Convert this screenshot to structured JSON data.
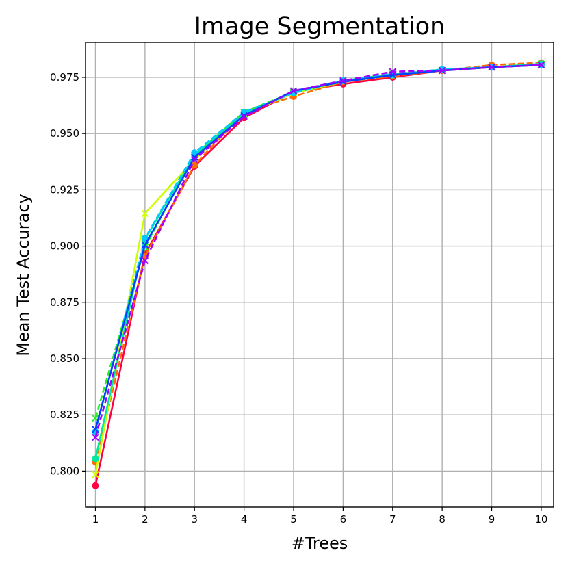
{
  "chart_data": {
    "type": "line",
    "title": "Image Segmentation",
    "xlabel": "#Trees",
    "ylabel": "Mean Test Accuracy",
    "x": [
      1,
      2,
      3,
      4,
      5,
      6,
      7,
      8,
      9,
      10
    ],
    "xlim": [
      0.8,
      10.25
    ],
    "ylim": [
      0.784,
      0.9905
    ],
    "xticks": [
      1,
      2,
      3,
      4,
      5,
      6,
      7,
      8,
      9,
      10
    ],
    "yticks": [
      0.8,
      0.825,
      0.85,
      0.875,
      0.9,
      0.925,
      0.95,
      0.975
    ],
    "ytick_labels": [
      "0.800",
      "0.825",
      "0.850",
      "0.875",
      "0.900",
      "0.925",
      "0.950",
      "0.975"
    ],
    "grid": true,
    "series": [
      {
        "color": "#ff0040",
        "dash": "solid",
        "marker": "circle",
        "values": [
          0.7935,
          0.8965,
          0.9355,
          0.957,
          0.9685,
          0.972,
          0.975,
          0.978,
          0.9795,
          0.9805
        ]
      },
      {
        "color": "#ff6a00",
        "dash": "dashed",
        "marker": "circle",
        "values": [
          0.804,
          0.8955,
          0.936,
          0.9595,
          0.9665,
          0.973,
          0.9755,
          0.978,
          0.9805,
          0.9815
        ]
      },
      {
        "color": "#ccff00",
        "dash": "solid",
        "marker": "x",
        "values": [
          0.7985,
          0.9145,
          0.9385,
          0.9585,
          0.968,
          0.973,
          0.976,
          0.978,
          0.9795,
          0.981
        ]
      },
      {
        "color": "#22ee22",
        "dash": "dashed",
        "marker": "x",
        "values": [
          0.8235,
          0.8995,
          0.9405,
          0.9595,
          0.9685,
          0.9735,
          0.9765,
          0.978,
          0.9795,
          0.981
        ]
      },
      {
        "color": "#00e8a0",
        "dash": "solid",
        "marker": "circle",
        "values": [
          0.8055,
          0.903,
          0.9405,
          0.9585,
          0.9685,
          0.9735,
          0.976,
          0.9785,
          0.9795,
          0.981
        ]
      },
      {
        "color": "#00c8ff",
        "dash": "dashed",
        "marker": "circle",
        "values": [
          0.8175,
          0.9035,
          0.9415,
          0.9595,
          0.968,
          0.9735,
          0.9765,
          0.9785,
          0.9795,
          0.9805
        ]
      },
      {
        "color": "#0040ff",
        "dash": "solid",
        "marker": "x",
        "values": [
          0.8185,
          0.9005,
          0.9395,
          0.958,
          0.969,
          0.973,
          0.976,
          0.978,
          0.9795,
          0.9805
        ]
      },
      {
        "color": "#a000ff",
        "dash": "dashed",
        "marker": "x",
        "values": [
          0.815,
          0.8935,
          0.9385,
          0.9575,
          0.969,
          0.9735,
          0.9775,
          0.978,
          0.9795,
          0.9805
        ]
      }
    ]
  }
}
